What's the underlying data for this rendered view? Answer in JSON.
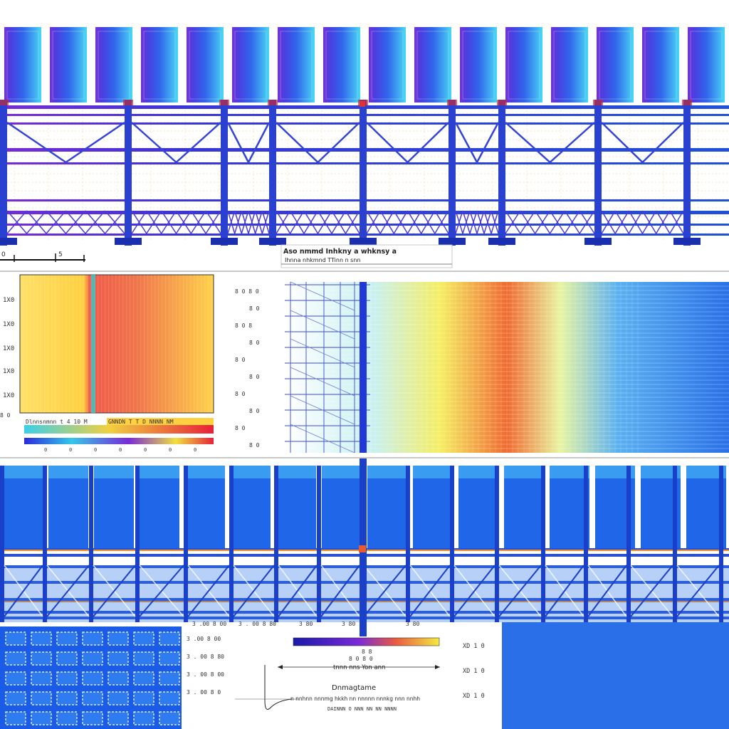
{
  "top_panel": {
    "scale_label_a": "0",
    "scale_label_b": "5",
    "caption_line1": "Aso nmmd Inhkny  a  whknsy  a",
    "caption_line2": "Ihnna  nhkmnd  TTinn  n  snn"
  },
  "heatmap_left": {
    "row_labels": [
      "1X0",
      "1X0",
      "1X0",
      "1X0",
      "1X0"
    ],
    "colorbar_label": "Dlnnsnmnn t 4 10 M",
    "colorbar_label_right": "GNNDN T T D NNNN NM",
    "colorbar_ticks": [
      "0",
      "0",
      "0",
      "0",
      "0",
      "0",
      "0"
    ],
    "colors": {
      "warm_low": "#ffe066",
      "warm_high": "#e8294a",
      "accent": "#33cccc"
    }
  },
  "heatmap_right": {
    "row_labels": [
      "8 0  8 0",
      "8 0",
      "8 0  8",
      "8 0",
      "8 0",
      "8 0",
      "8 0",
      "8 0",
      "8 0",
      "8 0"
    ]
  },
  "bottom_panel": {
    "left_labels": [
      "3 .00 8 00",
      "3 . 00 8 80",
      "3 . 00 8 00",
      "3 . 00 8 0"
    ],
    "col_labels": [
      "3 .00 8 00",
      "3 . 00 8 80",
      "3 80",
      "3 80",
      "3 80"
    ],
    "colorbar_mid": "8 8",
    "colorbar_sub": "8 0  8 0",
    "axis_caption": "tnnn  nns  Yon  ann",
    "legend_title": "Dnmagtame",
    "legend_desc": "n  nnhnn  nnnmg  hkkh  nn  nnnnn  nnnkg  nnn  nnhh",
    "legend_foot": "DAINNN  O  NNN  NN  NN NNNN",
    "right_labels": [
      "XD  1  0",
      "XD  1  0",
      "XD  1  0"
    ],
    "colors": {
      "blue": "#1f5fe6",
      "orange": "#f0902a",
      "frame": "#1a3fc8"
    }
  }
}
